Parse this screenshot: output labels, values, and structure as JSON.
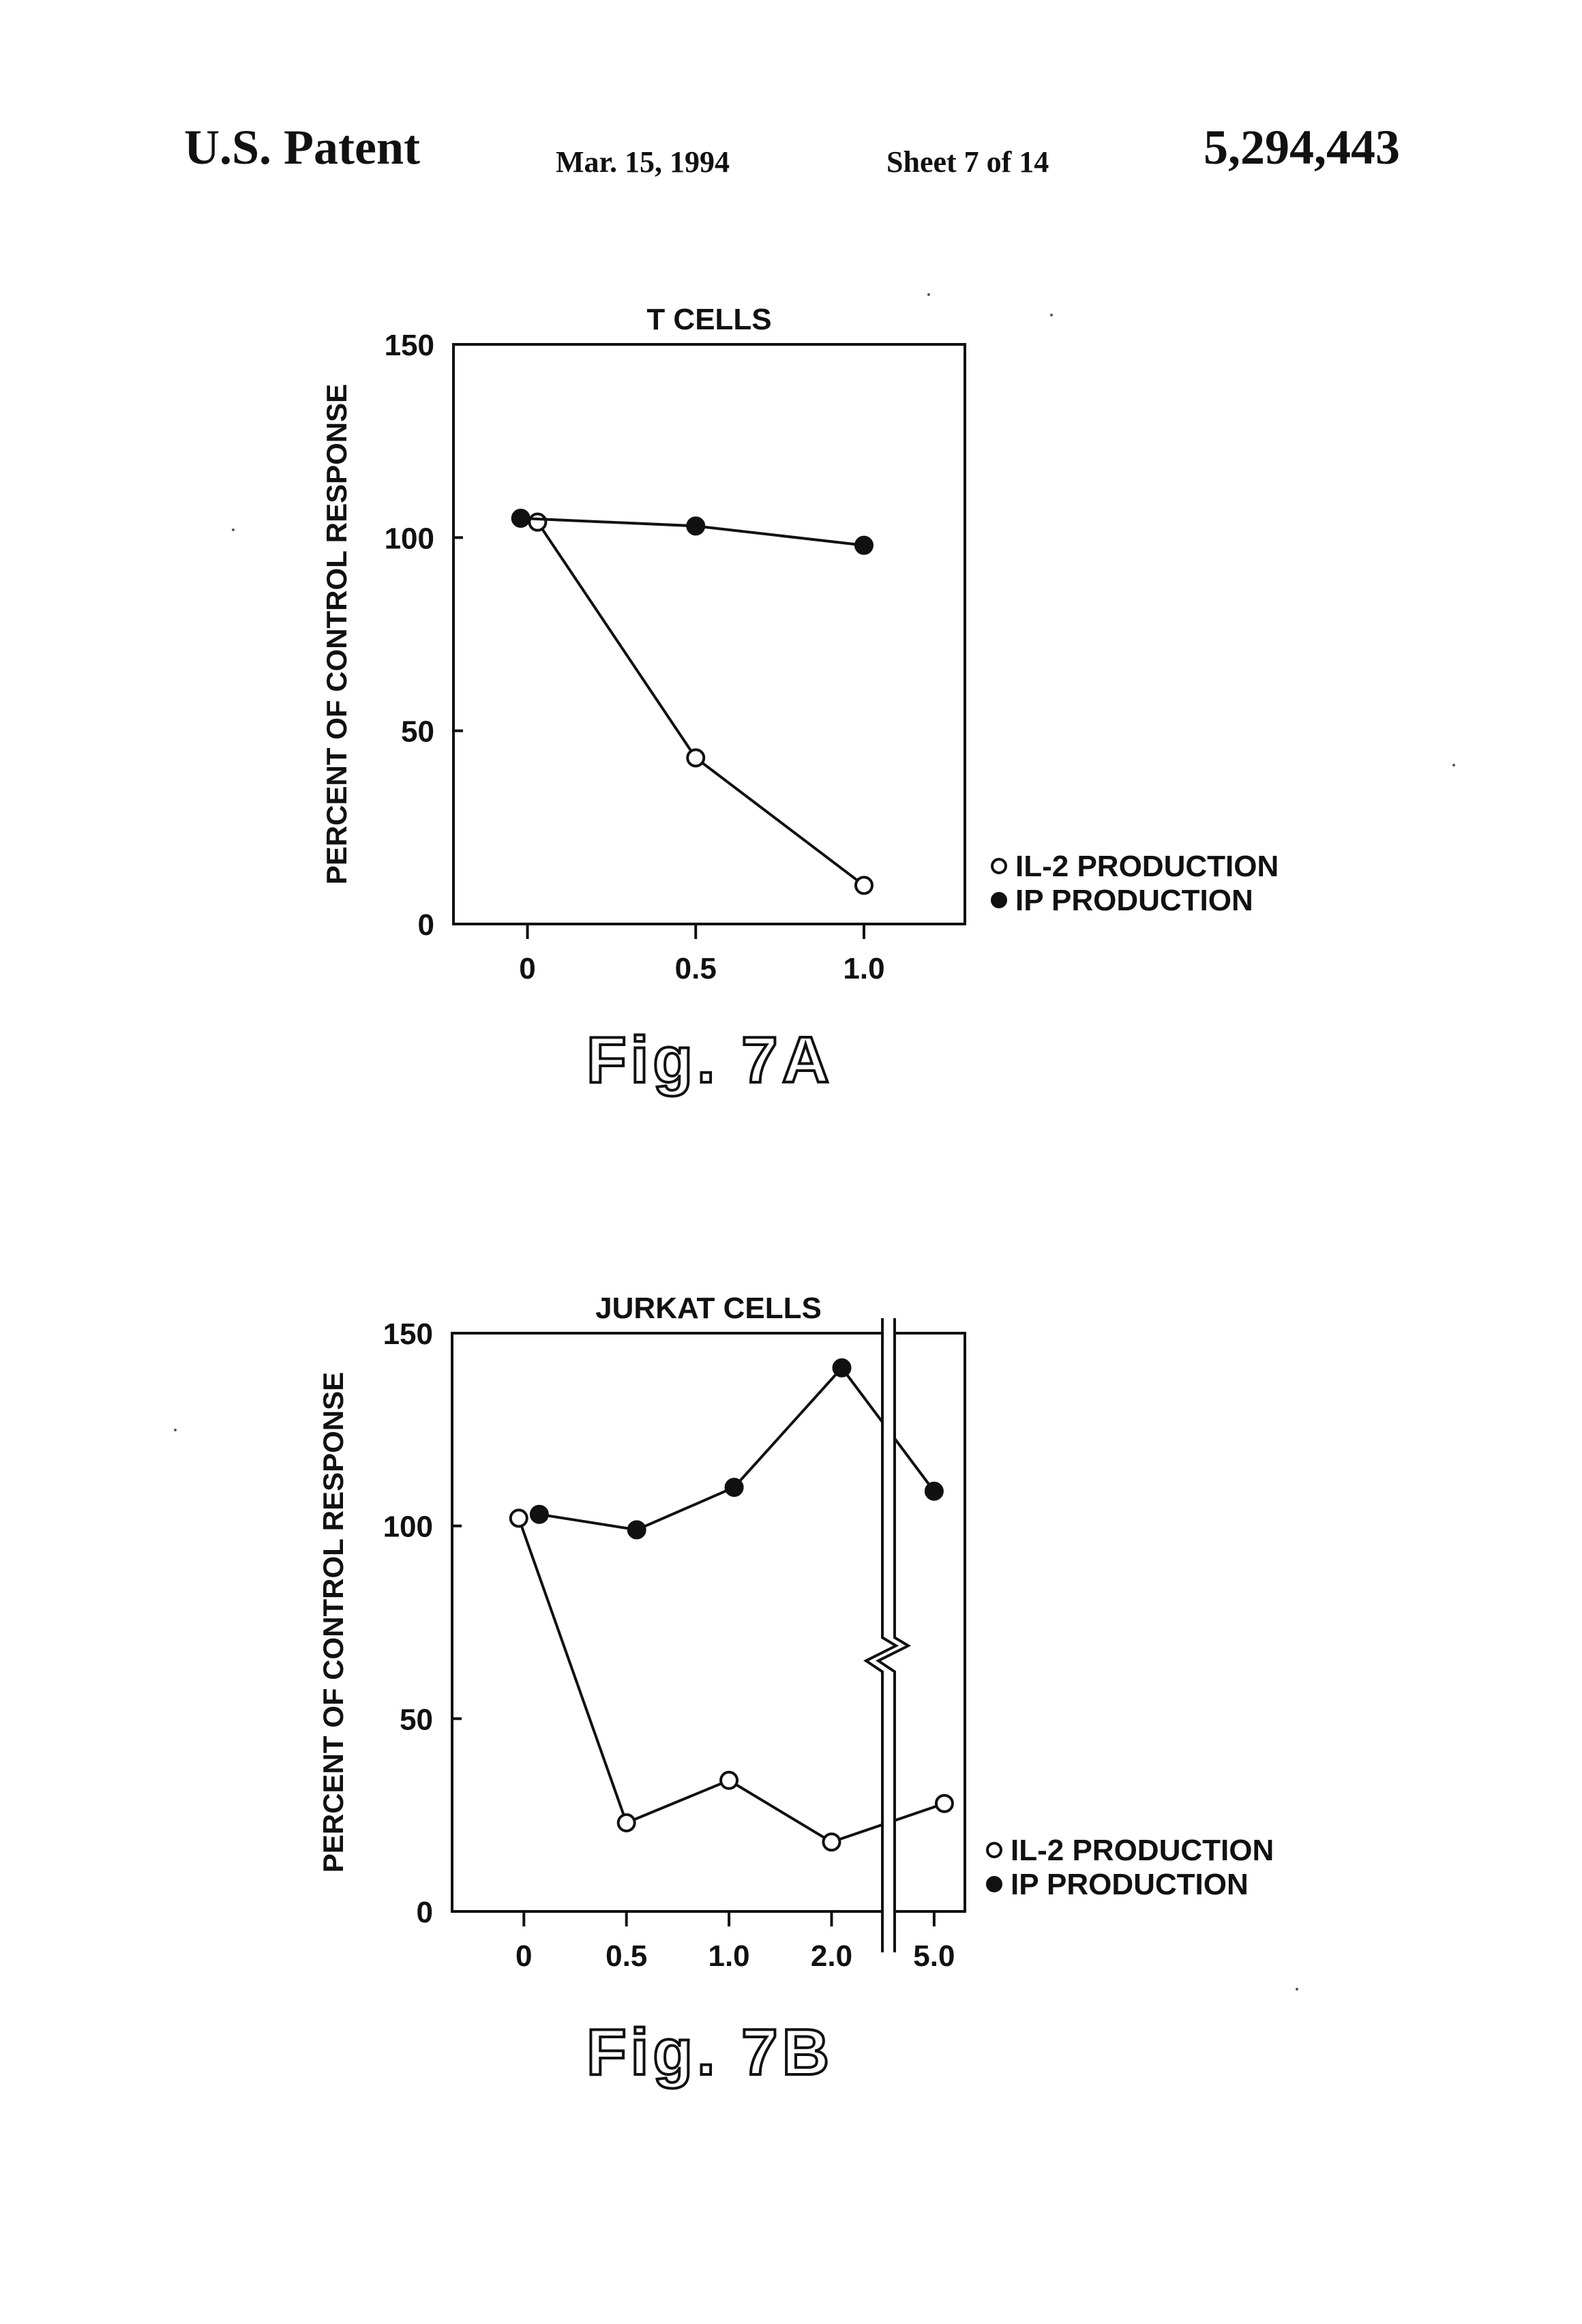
{
  "header": {
    "left": "U.S. Patent",
    "date": "Mar. 15, 1994",
    "sheet": "Sheet 7 of 14",
    "patent_number": "5,294,443"
  },
  "figures": {
    "fig7a_label": "Fig. 7A",
    "fig7b_label": "Fig. 7B"
  },
  "colors": {
    "ink": "#111111",
    "paper": "#ffffff"
  },
  "chart_data": [
    {
      "id": "fig7a",
      "type": "line",
      "title": "T CELLS",
      "xlabel": "",
      "ylabel": "PERCENT OF CONTROL RESPONSE",
      "ylim": [
        0,
        150
      ],
      "yticks": [
        0,
        50,
        100,
        150
      ],
      "xlim": [
        -0.22,
        1.3
      ],
      "xticks": [
        0,
        0.5,
        1.0
      ],
      "xtick_labels": [
        "0",
        "0.5",
        "1.0"
      ],
      "legend": [
        "IL-2 PRODUCTION",
        "IP PRODUCTION"
      ],
      "legend_position": "right",
      "series": [
        {
          "name": "IL-2 PRODUCTION",
          "marker": "open-circle",
          "x": [
            0.03,
            0.5,
            1.0
          ],
          "y": [
            104,
            43,
            10
          ]
        },
        {
          "name": "IP PRODUCTION",
          "marker": "filled-circle",
          "x": [
            -0.02,
            0.5,
            1.0
          ],
          "y": [
            105,
            103,
            98
          ]
        }
      ]
    },
    {
      "id": "fig7b",
      "type": "line",
      "title": "JURKAT CELLS",
      "xlabel": "",
      "ylabel": "PERCENT OF CONTROL RESPONSE",
      "ylim": [
        0,
        150
      ],
      "yticks": [
        0,
        50,
        100,
        150
      ],
      "xlim": [
        -0.7,
        4.3
      ],
      "xticks": [
        0,
        1,
        2,
        3,
        4
      ],
      "xtick_labels": [
        "0",
        "0.5",
        "1.0",
        "2.0",
        "5.0"
      ],
      "axis_break_after": "2.0",
      "legend": [
        "IL-2 PRODUCTION",
        "IP PRODUCTION"
      ],
      "legend_position": "right",
      "series": [
        {
          "name": "IL-2 PRODUCTION",
          "marker": "open-circle",
          "x": [
            -0.05,
            1.0,
            2.0,
            3.0,
            4.1
          ],
          "y": [
            102,
            23,
            34,
            18,
            28
          ]
        },
        {
          "name": "IP PRODUCTION",
          "marker": "filled-circle",
          "x": [
            0.15,
            1.1,
            2.05,
            3.1,
            4.0
          ],
          "y": [
            103,
            99,
            110,
            141,
            109
          ]
        }
      ]
    }
  ]
}
